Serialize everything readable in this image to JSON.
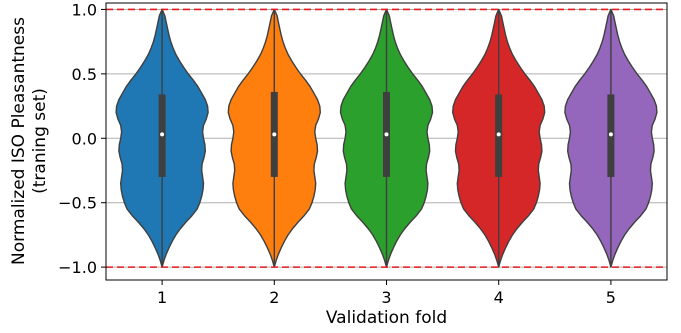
{
  "chart_data": {
    "type": "violin",
    "xlabel": "Validation fold",
    "ylabel_lines": [
      "Normalized ISO Pleasantness",
      "(traning set)"
    ],
    "categories": [
      "1",
      "2",
      "3",
      "4",
      "5"
    ],
    "ylim": [
      -1.1,
      1.05
    ],
    "yticks": [
      -1.0,
      -0.5,
      0.0,
      0.5,
      1.0
    ],
    "ytick_labels": [
      "−1.0",
      "−0.5",
      "0.0",
      "0.5",
      "1.0"
    ],
    "grid": "horizontal",
    "reference_lines": [
      1.0,
      -1.0
    ],
    "reference_line_color": "#e41a1c",
    "series": [
      {
        "color": "#1f77b4",
        "median": 0.03,
        "q1": -0.3,
        "q3": 0.34,
        "min": -1.0,
        "max": 1.0
      },
      {
        "color": "#ff7f0e",
        "median": 0.03,
        "q1": -0.3,
        "q3": 0.36,
        "min": -1.0,
        "max": 1.0
      },
      {
        "color": "#2ca02c",
        "median": 0.03,
        "q1": -0.3,
        "q3": 0.36,
        "min": -1.0,
        "max": 1.0
      },
      {
        "color": "#d62728",
        "median": 0.03,
        "q1": -0.3,
        "q3": 0.34,
        "min": -1.0,
        "max": 1.0
      },
      {
        "color": "#9467bd",
        "median": 0.03,
        "q1": -0.3,
        "q3": 0.34,
        "min": -1.0,
        "max": 1.0
      }
    ],
    "density_profile": [
      [
        -1.0,
        0.0
      ],
      [
        -0.95,
        0.04
      ],
      [
        -0.9,
        0.09
      ],
      [
        -0.85,
        0.15
      ],
      [
        -0.8,
        0.22
      ],
      [
        -0.75,
        0.3
      ],
      [
        -0.7,
        0.4
      ],
      [
        -0.65,
        0.52
      ],
      [
        -0.6,
        0.65
      ],
      [
        -0.55,
        0.76
      ],
      [
        -0.5,
        0.82
      ],
      [
        -0.45,
        0.86
      ],
      [
        -0.4,
        0.89
      ],
      [
        -0.35,
        0.9
      ],
      [
        -0.3,
        0.88
      ],
      [
        -0.25,
        0.86
      ],
      [
        -0.2,
        0.87
      ],
      [
        -0.15,
        0.91
      ],
      [
        -0.1,
        0.94
      ],
      [
        -0.05,
        0.93
      ],
      [
        0.0,
        0.9
      ],
      [
        0.05,
        0.88
      ],
      [
        0.1,
        0.9
      ],
      [
        0.15,
        0.96
      ],
      [
        0.2,
        1.0
      ],
      [
        0.25,
        0.99
      ],
      [
        0.3,
        0.94
      ],
      [
        0.35,
        0.86
      ],
      [
        0.4,
        0.78
      ],
      [
        0.45,
        0.68
      ],
      [
        0.5,
        0.57
      ],
      [
        0.55,
        0.47
      ],
      [
        0.6,
        0.38
      ],
      [
        0.65,
        0.3
      ],
      [
        0.7,
        0.24
      ],
      [
        0.75,
        0.19
      ],
      [
        0.8,
        0.15
      ],
      [
        0.85,
        0.12
      ],
      [
        0.9,
        0.09
      ],
      [
        0.95,
        0.06
      ],
      [
        1.0,
        0.0
      ]
    ]
  }
}
